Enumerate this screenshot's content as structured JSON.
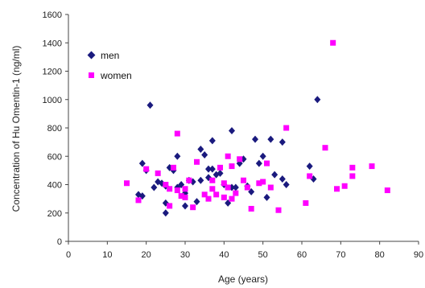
{
  "chart_data": {
    "type": "scatter",
    "title": "",
    "xlabel": "Age (years)",
    "ylabel": "Concentration of Hu Omentin-1 (ng/ml)",
    "xlim": [
      0,
      90
    ],
    "ylim": [
      0,
      1600
    ],
    "xticks": [
      0,
      10,
      20,
      30,
      40,
      50,
      60,
      70,
      80,
      90
    ],
    "yticks": [
      0,
      200,
      400,
      600,
      800,
      1000,
      1200,
      1400,
      1600
    ],
    "grid": false,
    "legend_position": "top-left",
    "series": [
      {
        "name": "men",
        "marker": "diamond",
        "color": "#1a1a7e",
        "points": [
          [
            18,
            330
          ],
          [
            19,
            550
          ],
          [
            19,
            320
          ],
          [
            20,
            500
          ],
          [
            21,
            960
          ],
          [
            22,
            380
          ],
          [
            23,
            420
          ],
          [
            24,
            410
          ],
          [
            25,
            390
          ],
          [
            25,
            270
          ],
          [
            25,
            200
          ],
          [
            26,
            520
          ],
          [
            27,
            500
          ],
          [
            28,
            600
          ],
          [
            28,
            380
          ],
          [
            29,
            400
          ],
          [
            30,
            250
          ],
          [
            30,
            340
          ],
          [
            31,
            430
          ],
          [
            32,
            420
          ],
          [
            33,
            280
          ],
          [
            34,
            650
          ],
          [
            34,
            430
          ],
          [
            35,
            610
          ],
          [
            36,
            510
          ],
          [
            36,
            450
          ],
          [
            37,
            710
          ],
          [
            37,
            510
          ],
          [
            38,
            470
          ],
          [
            39,
            480
          ],
          [
            40,
            400
          ],
          [
            41,
            270
          ],
          [
            42,
            780
          ],
          [
            42,
            380
          ],
          [
            43,
            380
          ],
          [
            44,
            550
          ],
          [
            45,
            580
          ],
          [
            46,
            390
          ],
          [
            47,
            350
          ],
          [
            48,
            720
          ],
          [
            49,
            550
          ],
          [
            50,
            600
          ],
          [
            51,
            310
          ],
          [
            52,
            720
          ],
          [
            53,
            470
          ],
          [
            55,
            700
          ],
          [
            55,
            440
          ],
          [
            56,
            400
          ],
          [
            62,
            530
          ],
          [
            63,
            440
          ],
          [
            64,
            1000
          ]
        ]
      },
      {
        "name": "women",
        "marker": "square",
        "color": "#ff00ff",
        "points": [
          [
            15,
            410
          ],
          [
            18,
            290
          ],
          [
            20,
            510
          ],
          [
            23,
            480
          ],
          [
            25,
            400
          ],
          [
            26,
            250
          ],
          [
            26,
            370
          ],
          [
            27,
            520
          ],
          [
            28,
            760
          ],
          [
            28,
            360
          ],
          [
            29,
            320
          ],
          [
            30,
            310
          ],
          [
            30,
            370
          ],
          [
            31,
            430
          ],
          [
            32,
            240
          ],
          [
            33,
            560
          ],
          [
            35,
            330
          ],
          [
            36,
            300
          ],
          [
            37,
            430
          ],
          [
            37,
            370
          ],
          [
            38,
            330
          ],
          [
            39,
            520
          ],
          [
            40,
            410
          ],
          [
            40,
            310
          ],
          [
            41,
            600
          ],
          [
            41,
            380
          ],
          [
            42,
            300
          ],
          [
            42,
            530
          ],
          [
            43,
            340
          ],
          [
            44,
            580
          ],
          [
            45,
            430
          ],
          [
            46,
            380
          ],
          [
            47,
            230
          ],
          [
            49,
            410
          ],
          [
            50,
            420
          ],
          [
            51,
            550
          ],
          [
            52,
            380
          ],
          [
            54,
            220
          ],
          [
            56,
            800
          ],
          [
            61,
            270
          ],
          [
            62,
            460
          ],
          [
            66,
            660
          ],
          [
            68,
            1400
          ],
          [
            69,
            370
          ],
          [
            71,
            390
          ],
          [
            73,
            520
          ],
          [
            73,
            460
          ],
          [
            78,
            530
          ],
          [
            82,
            360
          ]
        ]
      }
    ]
  }
}
